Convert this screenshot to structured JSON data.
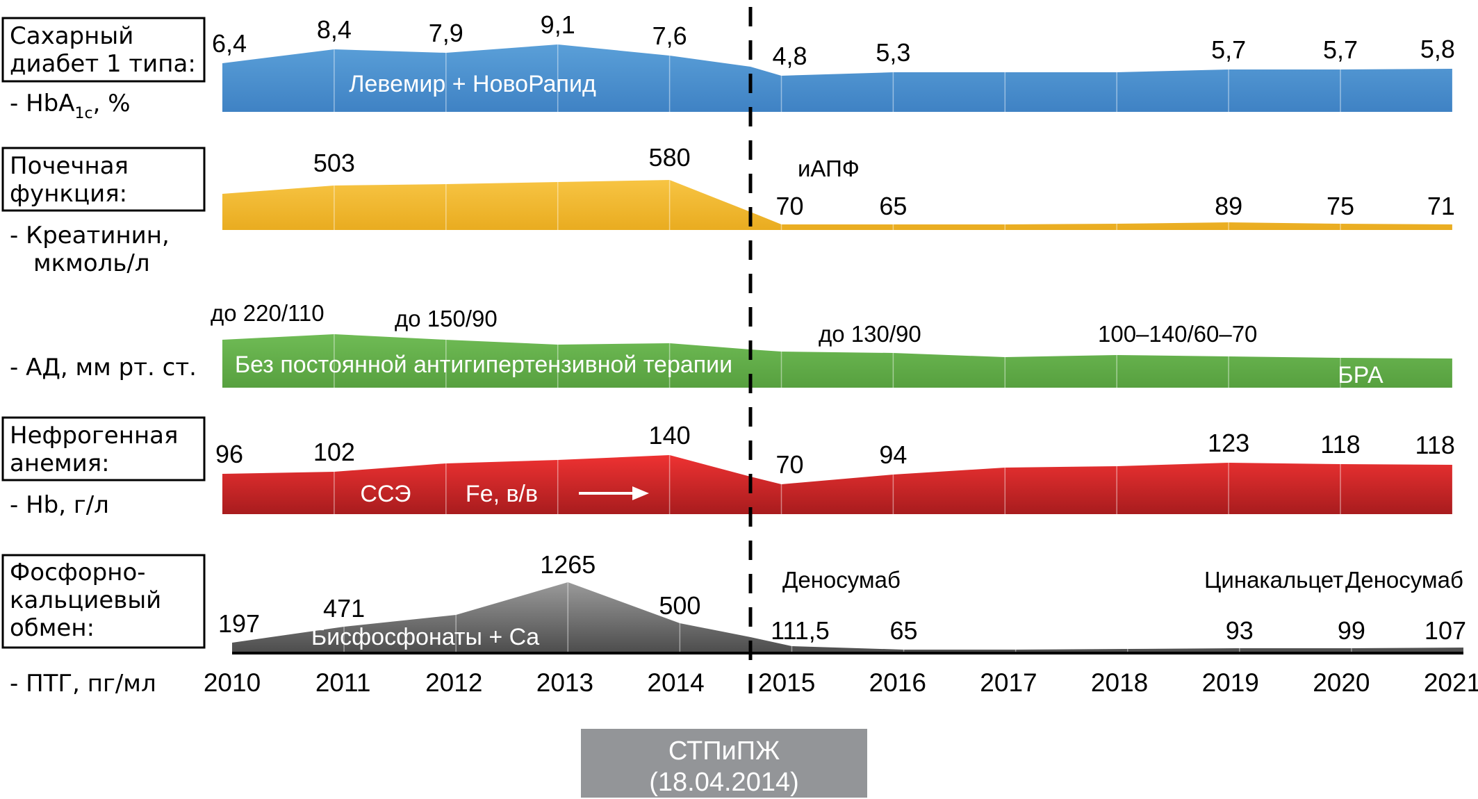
{
  "chart_data": {
    "type": "area",
    "title": "",
    "x": [
      "2010",
      "2011",
      "2012",
      "2013",
      "2014",
      "2015",
      "2016",
      "2017",
      "2018",
      "2019",
      "2020",
      "2021"
    ],
    "xlabel": "",
    "event": {
      "marker_year": "2014",
      "label_line1": "СТПиПЖ",
      "label_line2": "(18.04.2014)"
    },
    "panels": [
      {
        "id": "hba1c",
        "color": "#4a8ccc",
        "category_lines": [
          "Сахарный",
          "диабет 1 типа:"
        ],
        "metric_prefix": "-  HbA",
        "metric_sub": "1c",
        "metric_suffix": ", %",
        "points": [
          {
            "year": "2010",
            "value": 6.4,
            "label": "6,4"
          },
          {
            "year": "2011",
            "value": 8.4,
            "label": "8,4"
          },
          {
            "year": "2012",
            "value": 7.9,
            "label": "7,9"
          },
          {
            "year": "2013",
            "value": 9.1,
            "label": "9,1"
          },
          {
            "year": "2014",
            "value": 7.6,
            "label": "7,6"
          },
          {
            "year": "2015",
            "value": 4.8,
            "label": "4,8"
          },
          {
            "year": "2016",
            "value": 5.3,
            "label": "5,3"
          },
          {
            "year": "2017",
            "value": null,
            "label": ""
          },
          {
            "year": "2018",
            "value": null,
            "label": ""
          },
          {
            "year": "2019",
            "value": 5.7,
            "label": "5,7"
          },
          {
            "year": "2020",
            "value": 5.7,
            "label": "5,7"
          },
          {
            "year": "2021",
            "value": 5.8,
            "label": "5,8"
          }
        ],
        "inside_labels": [
          "Левемир + НовоРапид"
        ],
        "notes": []
      },
      {
        "id": "creatinine",
        "color": "#f2b728",
        "category_lines": [
          "Почечная",
          "функция:"
        ],
        "metric_lines": [
          "-  Креатинин,",
          "мкмоль/л"
        ],
        "points": [
          {
            "year": "2010",
            "value": null,
            "label": ""
          },
          {
            "year": "2011",
            "value": 503,
            "label": "503"
          },
          {
            "year": "2012",
            "value": null,
            "label": ""
          },
          {
            "year": "2013",
            "value": null,
            "label": ""
          },
          {
            "year": "2014",
            "value": 580,
            "label": "580"
          },
          {
            "year": "2015",
            "value": 70,
            "label": "70"
          },
          {
            "year": "2016",
            "value": 65,
            "label": "65"
          },
          {
            "year": "2017",
            "value": null,
            "label": ""
          },
          {
            "year": "2018",
            "value": null,
            "label": ""
          },
          {
            "year": "2019",
            "value": 89,
            "label": "89"
          },
          {
            "year": "2020",
            "value": 75,
            "label": "75"
          },
          {
            "year": "2021",
            "value": 71,
            "label": "71"
          }
        ],
        "inside_labels": [],
        "notes": [
          "иАПФ"
        ]
      },
      {
        "id": "bp",
        "color": "#62ad4a",
        "category_lines": [],
        "metric_lines": [
          "-  АД, мм рт. ст."
        ],
        "range_labels": [
          "до 220/110",
          "до 150/90",
          "до 130/90",
          "100–140/60–70"
        ],
        "inside_labels": [
          "Без постоянной антигипертензивной терапии",
          "БРА"
        ],
        "notes": []
      },
      {
        "id": "hb",
        "color": "#d9262a",
        "category_lines": [
          "Нефрогенная",
          "анемия:"
        ],
        "metric_lines": [
          "-  Hb, г/л"
        ],
        "points": [
          {
            "year": "2010",
            "value": 96,
            "label": "96"
          },
          {
            "year": "2011",
            "value": 102,
            "label": "102"
          },
          {
            "year": "2012",
            "value": null,
            "label": ""
          },
          {
            "year": "2013",
            "value": null,
            "label": ""
          },
          {
            "year": "2014",
            "value": 140,
            "label": "140"
          },
          {
            "year": "2015",
            "value": 70,
            "label": "70"
          },
          {
            "year": "2016",
            "value": 94,
            "label": "94"
          },
          {
            "year": "2017",
            "value": null,
            "label": ""
          },
          {
            "year": "2018",
            "value": null,
            "label": ""
          },
          {
            "year": "2019",
            "value": 123,
            "label": "123"
          },
          {
            "year": "2020",
            "value": 118,
            "label": "118"
          },
          {
            "year": "2021",
            "value": 118,
            "label": "118"
          }
        ],
        "inside_labels": [
          "ССЭ",
          "Fe, в/в"
        ],
        "notes": []
      },
      {
        "id": "pth",
        "color": "#7a7a7a",
        "category_lines": [
          "Фосфорно-",
          "кальциевый",
          "обмен:"
        ],
        "metric_lines": [
          "-  ПТГ, пг/мл"
        ],
        "points": [
          {
            "year": "2010",
            "value": 197,
            "label": "197"
          },
          {
            "year": "2011",
            "value": 471,
            "label": "471"
          },
          {
            "year": "2012",
            "value": null,
            "label": ""
          },
          {
            "year": "2013",
            "value": 1265,
            "label": "1265"
          },
          {
            "year": "2014",
            "value": 500,
            "label": "500"
          },
          {
            "year": "2015",
            "value": 111.5,
            "label": "111,5"
          },
          {
            "year": "2016",
            "value": 65,
            "label": "65"
          },
          {
            "year": "2017",
            "value": null,
            "label": ""
          },
          {
            "year": "2018",
            "value": null,
            "label": ""
          },
          {
            "year": "2019",
            "value": 93,
            "label": "93"
          },
          {
            "year": "2020",
            "value": 99,
            "label": "99"
          },
          {
            "year": "2021",
            "value": 107,
            "label": "107"
          }
        ],
        "inside_labels": [
          "Бисфосфонаты + Ca"
        ],
        "notes": [
          "Деносумаб",
          "Цинакальцет",
          "Деносумаб"
        ]
      }
    ]
  }
}
